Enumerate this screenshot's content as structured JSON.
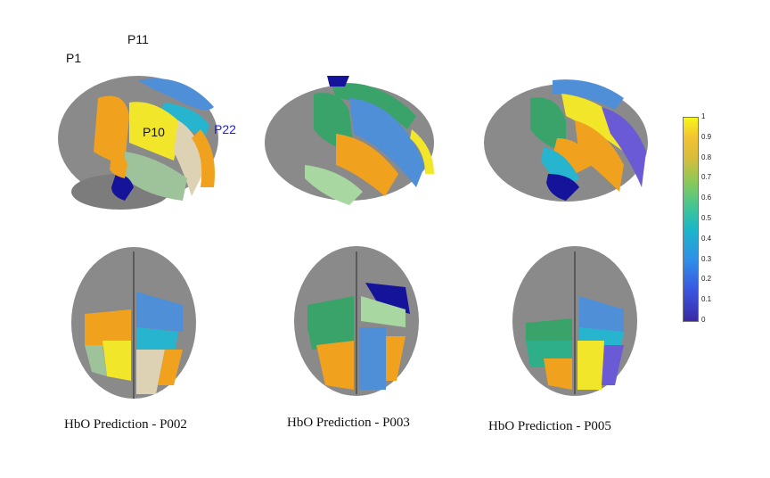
{
  "figure": {
    "captions": [
      "HbO Prediction - P002",
      "HbO Prediction - P003",
      "HbO Prediction - P005"
    ],
    "probe_labels": {
      "p1": {
        "text": "P1",
        "color": "#111111"
      },
      "p11": {
        "text": "P11",
        "color": "#111111"
      },
      "p10": {
        "text": "P10",
        "color": "#111111"
      },
      "p22": {
        "text": "P22",
        "color": "#1a1aff"
      }
    }
  },
  "colorbar": {
    "ticks": [
      "1",
      "0.9",
      "0.8",
      "0.7",
      "0.6",
      "0.5",
      "0.4",
      "0.3",
      "0.2",
      "0.1",
      "0"
    ],
    "colormap": "parula",
    "range": [
      0,
      1
    ]
  },
  "colors": {
    "cortex": "#8a8a8a",
    "yellow": "#f2e62a",
    "orange": "#f0a21e",
    "blue": "#4f8fd8",
    "cyan": "#27b4cf",
    "teal": "#2fae8a",
    "green": "#3aa36a",
    "light_green": "#a9d7a2",
    "beige": "#ddd3b4",
    "dark_blue": "#14139a",
    "purple": "#6a5ad6",
    "sage": "#9ec29a"
  }
}
